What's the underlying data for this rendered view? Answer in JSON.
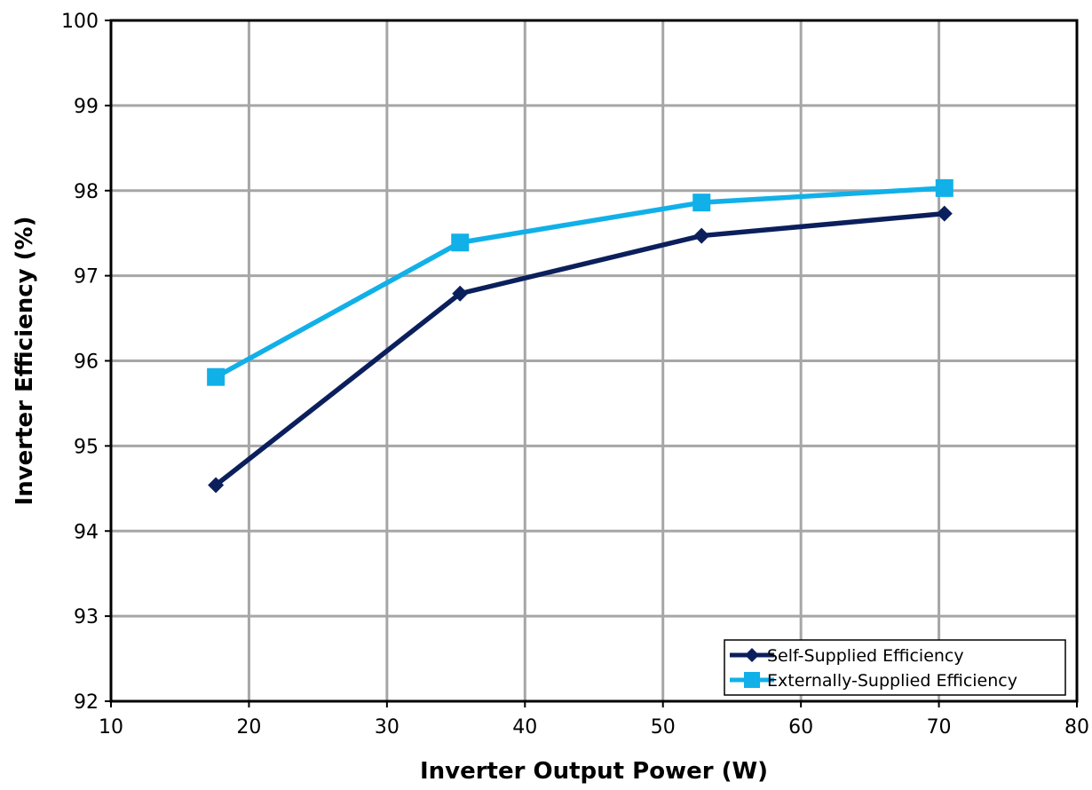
{
  "chart_data": {
    "type": "line",
    "title": "",
    "xlabel": "Inverter Output Power (W)",
    "ylabel": "Inverter Efficiency (%)",
    "xlim": [
      10,
      80
    ],
    "ylim": [
      92,
      100
    ],
    "xticks": [
      10,
      20,
      30,
      40,
      50,
      60,
      70,
      80
    ],
    "yticks": [
      92,
      93,
      94,
      95,
      96,
      97,
      98,
      99,
      100
    ],
    "grid": true,
    "legend_position": "bottom-right",
    "series": [
      {
        "name": "Self-Supplied Efficiency",
        "color": "#0b1f5c",
        "marker": "diamond",
        "x": [
          17.6,
          35.3,
          52.8,
          70.4
        ],
        "y": [
          94.54,
          96.79,
          97.47,
          97.73
        ]
      },
      {
        "name": "Externally-Supplied Efficiency",
        "color": "#11b0e8",
        "marker": "square",
        "x": [
          17.6,
          35.3,
          52.8,
          70.4
        ],
        "y": [
          95.81,
          97.39,
          97.86,
          98.03
        ]
      }
    ]
  }
}
